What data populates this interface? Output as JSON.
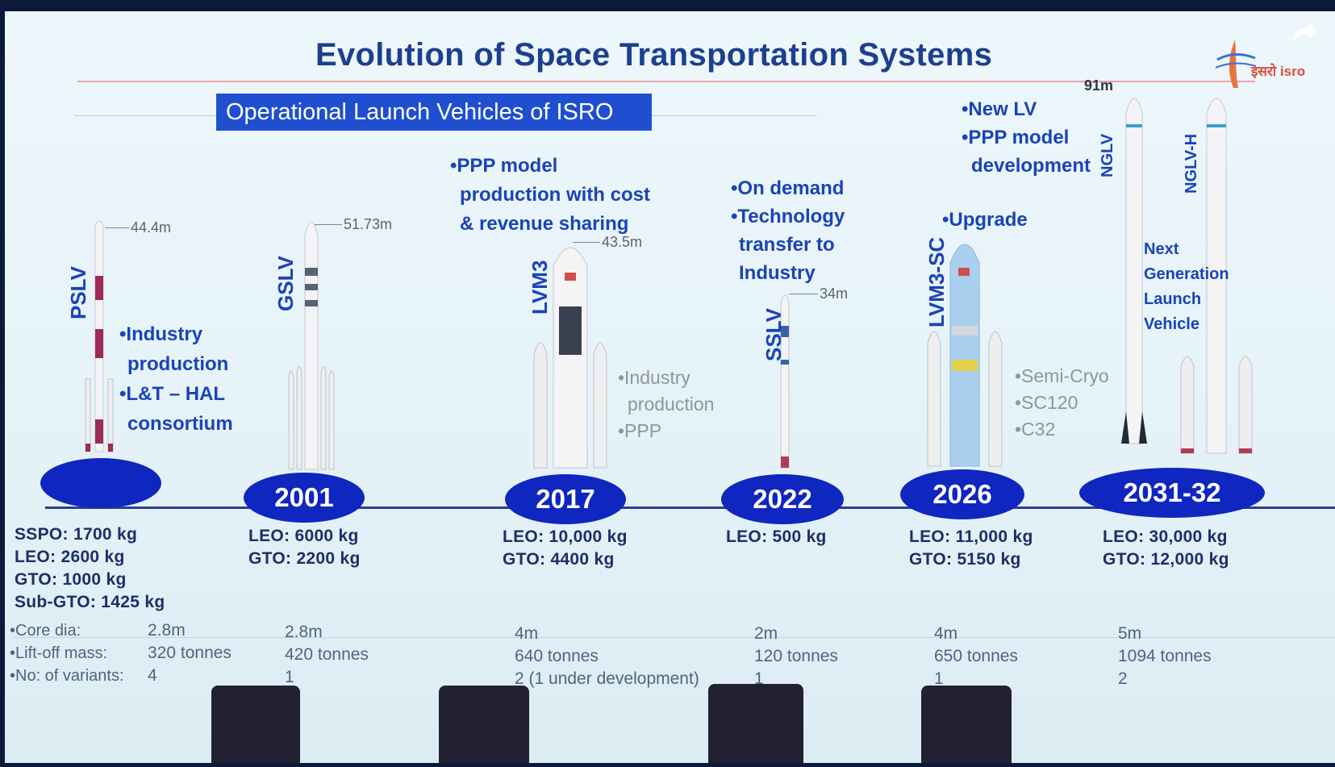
{
  "title": "Evolution of Space Transportation Systems",
  "subtitle": "Operational Launch Vehicles of ISRO",
  "logo_text": "इसरो isro",
  "vehicles": {
    "pslv": {
      "name": "PSLV",
      "height": "44.4m",
      "bullets": [
        "•Industry",
        "production",
        "•L&T – HAL",
        "consortium"
      ],
      "capacity": [
        "SSPO: 1700 kg",
        "LEO: 2600 kg",
        "GTO: 1000 kg",
        "Sub-GTO: 1425 kg"
      ]
    },
    "gslv": {
      "name": "GSLV",
      "height": "51.73m",
      "year": "2001",
      "capacity": [
        "LEO: 6000 kg",
        "GTO: 2200 kg"
      ]
    },
    "lvm3": {
      "name": "LVM3",
      "height": "43.5m",
      "year": "2017",
      "bullets": [
        "•PPP model",
        "production with cost",
        "& revenue sharing"
      ],
      "notes": [
        "•Industry",
        "production",
        "•PPP"
      ],
      "capacity": [
        "LEO: 10,000 kg",
        "GTO: 4400 kg"
      ]
    },
    "sslv": {
      "name": "SSLV",
      "height": "34m",
      "year": "2022",
      "bullets": [
        "•On demand",
        "•Technology",
        "transfer to",
        "Industry"
      ],
      "capacity": [
        "LEO: 500 kg"
      ]
    },
    "lvm3sc": {
      "name": "LVM3-SC",
      "year": "2026",
      "bullets": [
        "•Upgrade"
      ],
      "notes": [
        "•Semi-Cryo",
        "•SC120",
        "•C32"
      ],
      "capacity": [
        "LEO: 11,000 kg",
        "GTO: 5150 kg"
      ]
    },
    "nglv": {
      "name": "NGLV",
      "name_h": "NGLV-H",
      "height": "91m",
      "year": "2031-32",
      "bullets": [
        "•New LV",
        "•PPP model",
        "development"
      ],
      "caption": [
        "Next",
        "Generation",
        "Launch",
        "Vehicle"
      ],
      "capacity": [
        "LEO: 30,000 kg",
        "GTO: 12,000 kg"
      ]
    }
  },
  "specs": {
    "labels": [
      "•Core dia:",
      "•Lift-off mass:",
      "•No: of variants:"
    ],
    "pslv": [
      "2.8m",
      "320 tonnes",
      "4"
    ],
    "gslv": [
      "2.8m",
      "420 tonnes",
      "1"
    ],
    "lvm3": [
      "4m",
      "640 tonnes",
      "2 (1 under development)"
    ],
    "sslv": [
      "2m",
      "120 tonnes",
      "1"
    ],
    "lvm3sc": [
      "4m",
      "650 tonnes",
      "1"
    ],
    "nglv": [
      "5m",
      "1094 tonnes",
      "2"
    ]
  },
  "colors": {
    "accent": "#1f4fd0",
    "year_oval": "#0f26c0",
    "title": "#1d3f8f",
    "bullet": "#1b43b8"
  }
}
